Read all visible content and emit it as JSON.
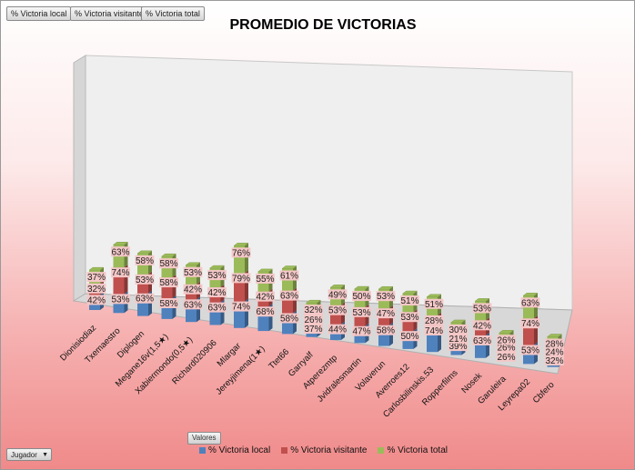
{
  "field_buttons": [
    "% Victoria local",
    "% Victoria visitante",
    "% Victoria total"
  ],
  "valores_label": "Valores",
  "jugador_label": "Jugador",
  "colors": {
    "local": "#4f81bd",
    "visitante": "#c0504d",
    "total": "#9bbb59"
  },
  "chart_data": {
    "type": "bar",
    "title": "PROMEDIO DE VICTORIAS",
    "categories": [
      "Dionisiodiaz",
      "Txemaestro",
      "Diplogen",
      "Megane16v(1,5★)",
      "Xabiermondo(0,5★)",
      "Richard020906",
      "Mlargar",
      "Jereyjimena(1★)",
      "Ttet66",
      "Garryalf",
      "Atperezmtp",
      "Jvidralesmartin",
      "Volaverun",
      "Averroes12",
      "Carlosbilinskis.53",
      "Ropperfilms",
      "Nosek",
      "Garuleira",
      "Leyrepa02",
      "Cbfero"
    ],
    "series": [
      {
        "name": "% Victoria local",
        "values": [
          42,
          53,
          63,
          58,
          63,
          63,
          74,
          68,
          58,
          37,
          44,
          47,
          58,
          50,
          74,
          39,
          63,
          26,
          53,
          32
        ]
      },
      {
        "name": "% Victoria visitante",
        "values": [
          32,
          74,
          53,
          58,
          42,
          42,
          79,
          42,
          63,
          26,
          53,
          53,
          47,
          53,
          28,
          21,
          42,
          26,
          74,
          24
        ]
      },
      {
        "name": "% Victoria total",
        "values": [
          37,
          63,
          58,
          58,
          53,
          53,
          76,
          55,
          61,
          32,
          49,
          50,
          53,
          51,
          51,
          30,
          53,
          26,
          63,
          28
        ]
      }
    ],
    "stacked": true,
    "data_labels": "percent",
    "legend_position": "bottom"
  }
}
